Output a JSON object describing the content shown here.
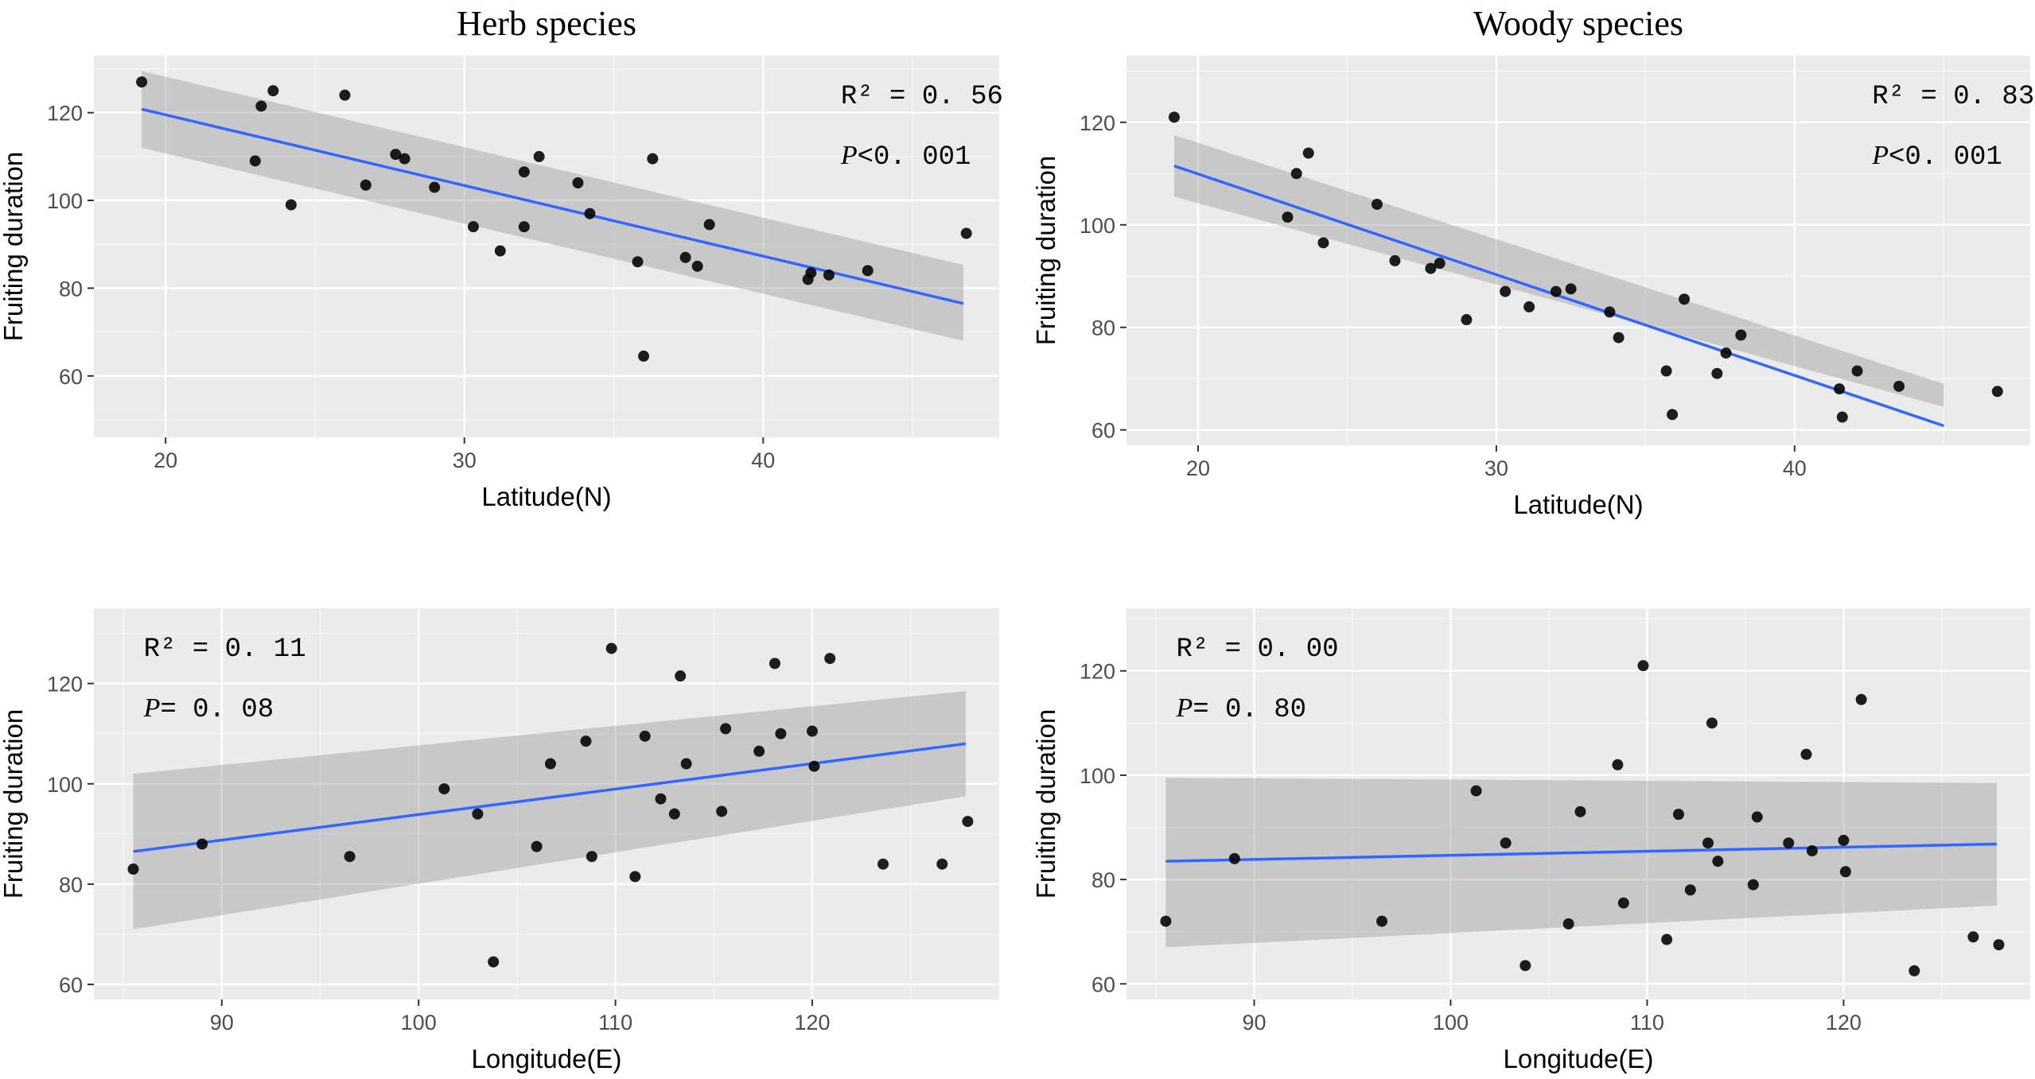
{
  "colors": {
    "panel_background": "#ebebeb",
    "grid": "#ffffff",
    "fit_line": "#3366ff",
    "ci_band": "#999999",
    "point": "#000000"
  },
  "chart_data": [
    {
      "type": "scatter",
      "title": "Herb species",
      "xlabel": "Latitude(N)",
      "ylabel": "Fruiting duration",
      "xlim": [
        17.6,
        47.9
      ],
      "ylim": [
        46,
        133
      ],
      "xticks": [
        20,
        30,
        40
      ],
      "yticks": [
        60,
        80,
        100,
        120
      ],
      "stat_r2": "R² = 0. 56",
      "stat_p": "<0. 001",
      "stat_p_symbol": "P",
      "stat_position": "top-right",
      "fit": {
        "x": [
          19.2,
          46.7
        ],
        "y": [
          120.8,
          76.5
        ],
        "ci_lower": [
          112,
          68
        ],
        "ci_upper": [
          129.5,
          85.3
        ]
      },
      "points": [
        {
          "x": 19.2,
          "y": 127
        },
        {
          "x": 23.0,
          "y": 109
        },
        {
          "x": 23.2,
          "y": 121.5
        },
        {
          "x": 23.6,
          "y": 125
        },
        {
          "x": 24.2,
          "y": 99
        },
        {
          "x": 26.0,
          "y": 124
        },
        {
          "x": 26.7,
          "y": 103.5
        },
        {
          "x": 27.7,
          "y": 110.5
        },
        {
          "x": 28.0,
          "y": 109.5
        },
        {
          "x": 29.0,
          "y": 103
        },
        {
          "x": 30.3,
          "y": 94
        },
        {
          "x": 31.2,
          "y": 88.5
        },
        {
          "x": 32.0,
          "y": 94
        },
        {
          "x": 32.0,
          "y": 106.5
        },
        {
          "x": 32.5,
          "y": 110
        },
        {
          "x": 33.8,
          "y": 104
        },
        {
          "x": 34.2,
          "y": 97
        },
        {
          "x": 35.8,
          "y": 86
        },
        {
          "x": 36.0,
          "y": 64.5
        },
        {
          "x": 36.3,
          "y": 109.5
        },
        {
          "x": 37.4,
          "y": 87
        },
        {
          "x": 37.8,
          "y": 85
        },
        {
          "x": 38.2,
          "y": 94.5
        },
        {
          "x": 41.5,
          "y": 82
        },
        {
          "x": 41.6,
          "y": 83.5
        },
        {
          "x": 42.2,
          "y": 83
        },
        {
          "x": 43.5,
          "y": 84
        },
        {
          "x": 46.8,
          "y": 92.5
        }
      ]
    },
    {
      "type": "scatter",
      "title": "Woody species",
      "xlabel": "Latitude(N)",
      "ylabel": "Fruiting duration",
      "xlim": [
        17.6,
        47.9
      ],
      "ylim": [
        57,
        133
      ],
      "xticks": [
        20,
        30,
        40
      ],
      "yticks": [
        60,
        80,
        100,
        120
      ],
      "stat_r2": "R² = 0. 83",
      "stat_p": "<0. 001",
      "stat_p_symbol": "P",
      "stat_position": "top-right",
      "fit": {
        "x": [
          19.2,
          45.0
        ],
        "y": [
          111.5,
          60.8
        ],
        "ci_lower": [
          105.5,
          64.5
        ],
        "ci_upper": [
          117.5,
          69
        ]
      },
      "points": [
        {
          "x": 19.2,
          "y": 121
        },
        {
          "x": 23.0,
          "y": 101.5
        },
        {
          "x": 23.3,
          "y": 110
        },
        {
          "x": 23.7,
          "y": 114
        },
        {
          "x": 24.2,
          "y": 96.5
        },
        {
          "x": 26.0,
          "y": 104
        },
        {
          "x": 26.6,
          "y": 93
        },
        {
          "x": 27.8,
          "y": 91.5
        },
        {
          "x": 28.1,
          "y": 92.5
        },
        {
          "x": 29.0,
          "y": 81.5
        },
        {
          "x": 30.3,
          "y": 87
        },
        {
          "x": 31.1,
          "y": 84
        },
        {
          "x": 32.0,
          "y": 87
        },
        {
          "x": 32.5,
          "y": 87.5
        },
        {
          "x": 33.8,
          "y": 83
        },
        {
          "x": 34.1,
          "y": 78
        },
        {
          "x": 35.7,
          "y": 71.5
        },
        {
          "x": 35.9,
          "y": 63
        },
        {
          "x": 36.3,
          "y": 85.5
        },
        {
          "x": 37.4,
          "y": 71
        },
        {
          "x": 37.7,
          "y": 75
        },
        {
          "x": 38.2,
          "y": 78.5
        },
        {
          "x": 41.5,
          "y": 68
        },
        {
          "x": 41.6,
          "y": 62.5
        },
        {
          "x": 42.1,
          "y": 71.5
        },
        {
          "x": 43.5,
          "y": 68.5
        },
        {
          "x": 46.8,
          "y": 67.5
        }
      ]
    },
    {
      "type": "scatter",
      "title": "",
      "xlabel": "Longitude(E)",
      "ylabel": "Fruiting duration",
      "xlim": [
        83.5,
        129.5
      ],
      "ylim": [
        57,
        135
      ],
      "xticks": [
        90,
        100,
        110,
        120
      ],
      "yticks": [
        60,
        80,
        100,
        120
      ],
      "stat_r2": "R² = 0. 11",
      "stat_p": "= 0. 08",
      "stat_p_symbol": "P",
      "stat_position": "top-left",
      "fit": {
        "x": [
          85.5,
          127.8
        ],
        "y": [
          86.5,
          108
        ],
        "ci_lower": [
          71,
          97.5
        ],
        "ci_upper": [
          102,
          118.5
        ]
      },
      "points": [
        {
          "x": 85.5,
          "y": 83
        },
        {
          "x": 89.0,
          "y": 88
        },
        {
          "x": 96.5,
          "y": 85.5
        },
        {
          "x": 101.3,
          "y": 99
        },
        {
          "x": 103.0,
          "y": 94
        },
        {
          "x": 103.8,
          "y": 64.5
        },
        {
          "x": 106.0,
          "y": 87.5
        },
        {
          "x": 106.7,
          "y": 104
        },
        {
          "x": 108.5,
          "y": 108.5
        },
        {
          "x": 108.8,
          "y": 85.5
        },
        {
          "x": 109.8,
          "y": 127
        },
        {
          "x": 111.0,
          "y": 81.5
        },
        {
          "x": 111.5,
          "y": 109.5
        },
        {
          "x": 112.3,
          "y": 97
        },
        {
          "x": 113.0,
          "y": 94
        },
        {
          "x": 113.3,
          "y": 121.5
        },
        {
          "x": 113.6,
          "y": 104
        },
        {
          "x": 115.4,
          "y": 94.5
        },
        {
          "x": 115.6,
          "y": 111
        },
        {
          "x": 117.3,
          "y": 106.5
        },
        {
          "x": 118.1,
          "y": 124
        },
        {
          "x": 118.4,
          "y": 110
        },
        {
          "x": 120.0,
          "y": 110.5
        },
        {
          "x": 120.1,
          "y": 103.5
        },
        {
          "x": 120.9,
          "y": 125
        },
        {
          "x": 123.6,
          "y": 84
        },
        {
          "x": 126.6,
          "y": 84
        },
        {
          "x": 127.9,
          "y": 92.5
        }
      ]
    },
    {
      "type": "scatter",
      "title": "",
      "xlabel": "Longitude(E)",
      "ylabel": "Fruiting duration",
      "xlim": [
        83.5,
        129.5
      ],
      "ylim": [
        57,
        132
      ],
      "xticks": [
        90,
        100,
        110,
        120
      ],
      "yticks": [
        60,
        80,
        100,
        120
      ],
      "stat_r2": "R² = 0. 00",
      "stat_p": "= 0. 80",
      "stat_p_symbol": "P",
      "stat_position": "top-left",
      "fit": {
        "x": [
          85.5,
          127.8
        ],
        "y": [
          83.5,
          86.8
        ],
        "ci_lower": [
          67,
          75
        ],
        "ci_upper": [
          99.5,
          98.5
        ]
      },
      "points": [
        {
          "x": 85.5,
          "y": 72
        },
        {
          "x": 89.0,
          "y": 84
        },
        {
          "x": 96.5,
          "y": 72
        },
        {
          "x": 101.3,
          "y": 97
        },
        {
          "x": 102.8,
          "y": 87
        },
        {
          "x": 103.8,
          "y": 63.5
        },
        {
          "x": 106.0,
          "y": 71.5
        },
        {
          "x": 106.6,
          "y": 93
        },
        {
          "x": 108.5,
          "y": 102
        },
        {
          "x": 108.8,
          "y": 75.5
        },
        {
          "x": 109.8,
          "y": 121
        },
        {
          "x": 111.0,
          "y": 68.5
        },
        {
          "x": 111.6,
          "y": 92.5
        },
        {
          "x": 112.2,
          "y": 78
        },
        {
          "x": 113.1,
          "y": 87
        },
        {
          "x": 113.3,
          "y": 110
        },
        {
          "x": 113.6,
          "y": 83.5
        },
        {
          "x": 115.4,
          "y": 79
        },
        {
          "x": 115.6,
          "y": 92
        },
        {
          "x": 117.2,
          "y": 87
        },
        {
          "x": 118.1,
          "y": 104
        },
        {
          "x": 118.4,
          "y": 85.5
        },
        {
          "x": 120.0,
          "y": 87.5
        },
        {
          "x": 120.1,
          "y": 81.5
        },
        {
          "x": 120.9,
          "y": 114.5
        },
        {
          "x": 123.6,
          "y": 62.5
        },
        {
          "x": 126.6,
          "y": 69
        },
        {
          "x": 127.9,
          "y": 67.5
        }
      ]
    }
  ]
}
